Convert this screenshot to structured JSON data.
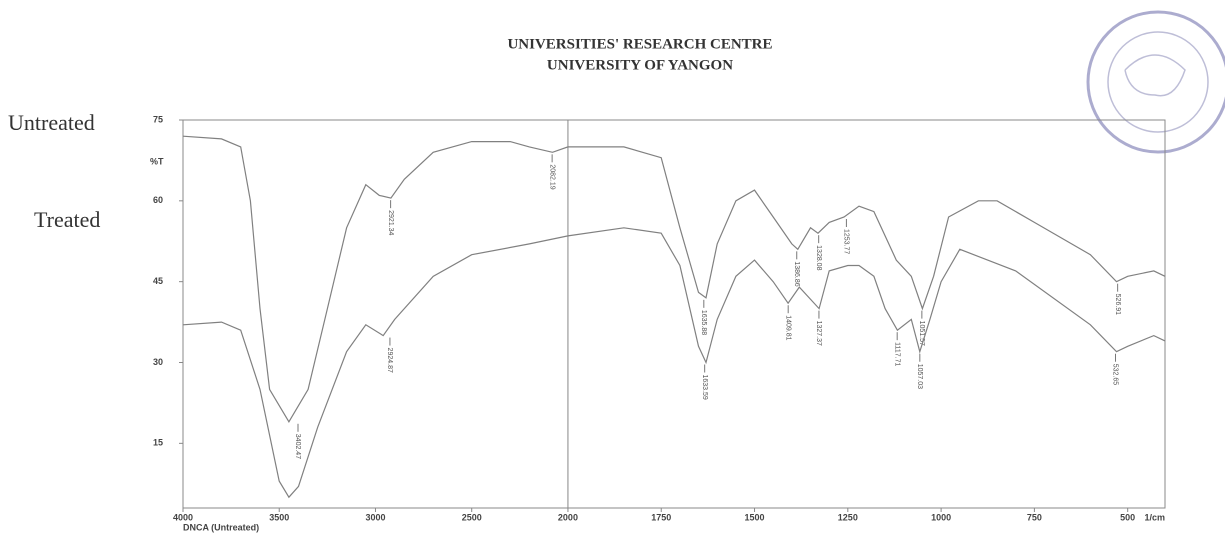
{
  "chart_data": {
    "type": "line",
    "title": "UNIVERSITIES' RESEARCH CENTRE",
    "subtitle": "UNIVERSITY OF YANGON",
    "y_label": "%T",
    "x_label": "1/cm",
    "sample_label": "DNCA (Untreated)",
    "xlim": [
      4000,
      400
    ],
    "x_break": 2000,
    "ylim": [
      3,
      75
    ],
    "xticks": [
      4000,
      3500,
      3000,
      2500,
      2000,
      1750,
      1500,
      1250,
      1000,
      750,
      500
    ],
    "yticks": [
      15,
      30,
      45,
      60,
      75
    ],
    "series": [
      {
        "name": "Untreated",
        "color": "#808080",
        "x": [
          4000,
          3800,
          3700,
          3650,
          3600,
          3550,
          3450,
          3350,
          3250,
          3150,
          3050,
          2980,
          2920,
          2850,
          2700,
          2500,
          2300,
          2200,
          2080,
          2000,
          1850,
          1750,
          1700,
          1650,
          1630,
          1600,
          1550,
          1500,
          1450,
          1400,
          1384,
          1350,
          1330,
          1300,
          1260,
          1220,
          1180,
          1120,
          1080,
          1050,
          1020,
          980,
          900,
          850,
          750,
          600,
          530,
          500,
          430,
          400
        ],
        "values": [
          72,
          71.5,
          70,
          60,
          40,
          25,
          19,
          25,
          40,
          55,
          63,
          61,
          60.5,
          64,
          69,
          71,
          71,
          70,
          69,
          70,
          70,
          68,
          55,
          43,
          42,
          52,
          60,
          62,
          57,
          52,
          51,
          55,
          54,
          56,
          57,
          59,
          58,
          49,
          46,
          40,
          46,
          57,
          60,
          60,
          56,
          50,
          45,
          46,
          47,
          46
        ],
        "annotations": [
          {
            "x": 3402.47,
            "y": 19
          },
          {
            "x": 2921.34,
            "y": 60.5
          },
          {
            "x": 2082.19,
            "y": 69
          },
          {
            "x": 1635.88,
            "y": 42
          },
          {
            "x": 1386.86,
            "y": 51
          },
          {
            "x": 1328.08,
            "y": 54
          },
          {
            "x": 1253.77,
            "y": 57
          },
          {
            "x": 1051.57,
            "y": 40
          },
          {
            "x": 526.91,
            "y": 45
          }
        ]
      },
      {
        "name": "Treated",
        "color": "#808080",
        "x": [
          4000,
          3800,
          3700,
          3600,
          3500,
          3450,
          3400,
          3300,
          3150,
          3050,
          2960,
          2900,
          2700,
          2500,
          2200,
          2000,
          1850,
          1750,
          1700,
          1650,
          1630,
          1600,
          1550,
          1500,
          1450,
          1410,
          1380,
          1327,
          1300,
          1250,
          1220,
          1180,
          1150,
          1117,
          1080,
          1057,
          1030,
          1000,
          950,
          800,
          600,
          530,
          500,
          430,
          400
        ],
        "values": [
          37,
          37.5,
          36,
          25,
          8,
          5,
          7,
          18,
          32,
          37,
          35,
          38,
          46,
          50,
          52,
          53.5,
          55,
          54,
          48,
          33,
          30,
          38,
          46,
          49,
          45,
          41,
          44,
          40,
          47,
          48,
          48,
          46,
          40,
          36,
          38,
          32,
          38,
          45,
          51,
          47,
          37,
          32,
          33,
          35,
          34
        ],
        "annotations": [
          {
            "x": 2924.87,
            "y": 35
          },
          {
            "x": 1633.59,
            "y": 30
          },
          {
            "x": 1409.81,
            "y": 41
          },
          {
            "x": 1327.37,
            "y": 40
          },
          {
            "x": 1117.71,
            "y": 36
          },
          {
            "x": 1057.03,
            "y": 32
          },
          {
            "x": 532.65,
            "y": 32
          }
        ]
      }
    ]
  }
}
